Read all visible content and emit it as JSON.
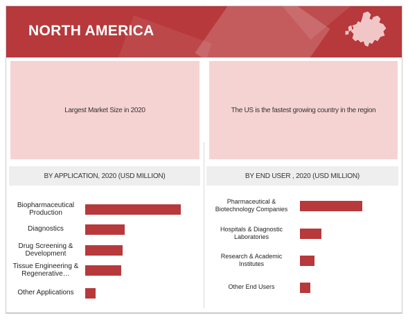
{
  "header": {
    "title": "NORTH AMERICA",
    "color": "#b7393b"
  },
  "left_panel": {
    "highlight": "Largest Market Size in 2020",
    "subheader": "BY APPLICATION, 2020 (USD MILLION)"
  },
  "right_panel": {
    "highlight": "The US is the fastest growing country in the region",
    "subheader": "BY END USER , 2020 (USD MILLION)"
  },
  "chart_data": [
    {
      "type": "bar",
      "orientation": "horizontal",
      "categories": [
        "Biopharmaceutical Production",
        "Diagnostics",
        "Drug Screening & Development",
        "Tissue Engineering & Regenerative…",
        "Other Applications"
      ],
      "values": [
        100,
        41,
        39,
        38,
        11
      ],
      "xlim": [
        0,
        100
      ],
      "grid": false,
      "legend": "none",
      "color": "#b7393b"
    },
    {
      "type": "bar",
      "orientation": "horizontal",
      "categories": [
        "Pharmaceutical & Biotechnology Companies",
        "Hospitals & Diagnostic Laboratories",
        "Research & Academic Institutes",
        "Other End Users"
      ],
      "values": [
        100,
        34,
        23,
        17
      ],
      "xlim": [
        0,
        100
      ],
      "grid": false,
      "legend": "none",
      "color": "#b7393b"
    }
  ]
}
